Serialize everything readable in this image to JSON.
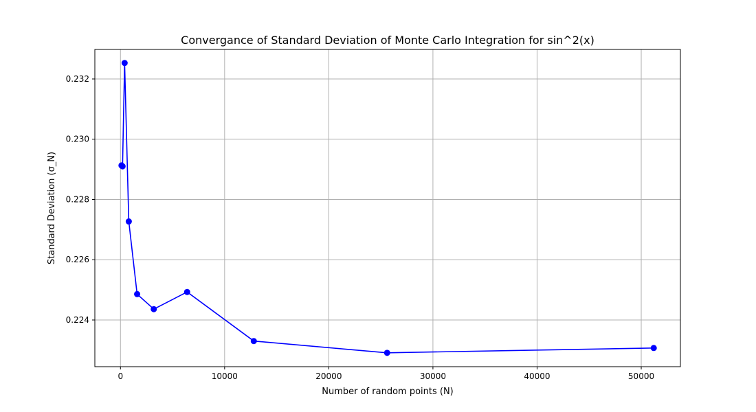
{
  "chart_data": {
    "type": "line",
    "title": "Convergance of Standard Deviation of Monte Carlo Integration for sin^2(x)",
    "xlabel": "Number of random points (N)",
    "ylabel": "Standard Deviation (σ_N)",
    "xlim": [
      -2460,
      53760
    ],
    "ylim": [
      0.22245,
      0.23298
    ],
    "xticks": [
      0,
      10000,
      20000,
      30000,
      40000,
      50000
    ],
    "xtick_labels": [
      "0",
      "10000",
      "20000",
      "30000",
      "40000",
      "50000"
    ],
    "yticks": [
      0.224,
      0.226,
      0.228,
      0.23,
      0.232
    ],
    "ytick_labels": [
      "0.224",
      "0.226",
      "0.228",
      "0.230",
      "0.232"
    ],
    "grid": true,
    "series": [
      {
        "color": "#0000ff",
        "marker": "circle",
        "x": [
          100,
          200,
          400,
          800,
          1600,
          3200,
          6400,
          12800,
          25600,
          51200
        ],
        "y": [
          0.22913,
          0.2291,
          0.23253,
          0.22727,
          0.22486,
          0.22436,
          0.22493,
          0.2233,
          0.22291,
          0.22307
        ]
      }
    ]
  }
}
